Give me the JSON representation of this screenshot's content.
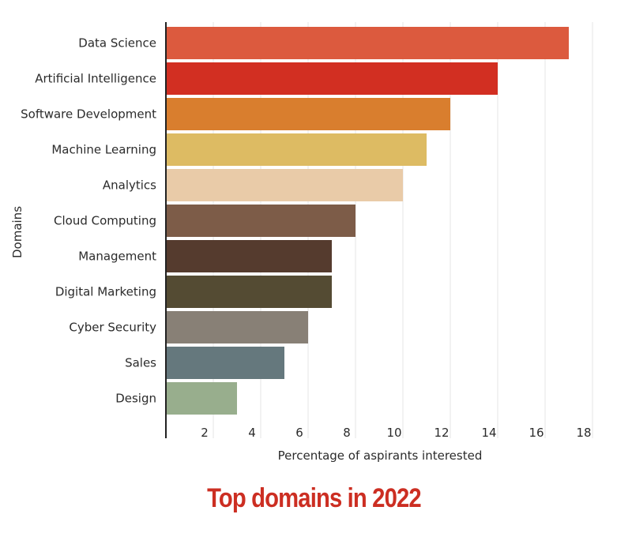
{
  "chart_data": {
    "type": "bar",
    "orientation": "horizontal",
    "title": "Top domains in 2022",
    "xlabel": "Percentage of aspirants interested",
    "ylabel": "Domains",
    "categories": [
      "Data Science",
      "Artificial Intelligence",
      "Software Development",
      "Machine Learning",
      "Analytics",
      "Cloud Computing",
      "Management",
      "Digital Marketing",
      "Cyber Security",
      "Sales",
      "Design"
    ],
    "values": [
      17,
      14,
      12,
      11,
      10,
      8,
      7,
      7,
      6,
      5,
      3
    ],
    "xlim": [
      0,
      18
    ],
    "xticks": [
      "2",
      "4",
      "6",
      "8",
      "10",
      "12",
      "14",
      "16",
      "18"
    ],
    "colors": [
      "#dc5a3e",
      "#d22f22",
      "#d97e2e",
      "#ddbb63",
      "#e9cba8",
      "#7d5c48",
      "#553b2e",
      "#544b33",
      "#888076",
      "#65787d",
      "#98ae8d"
    ],
    "title_color": "#cc2e22",
    "grid": true,
    "legend": "none"
  }
}
